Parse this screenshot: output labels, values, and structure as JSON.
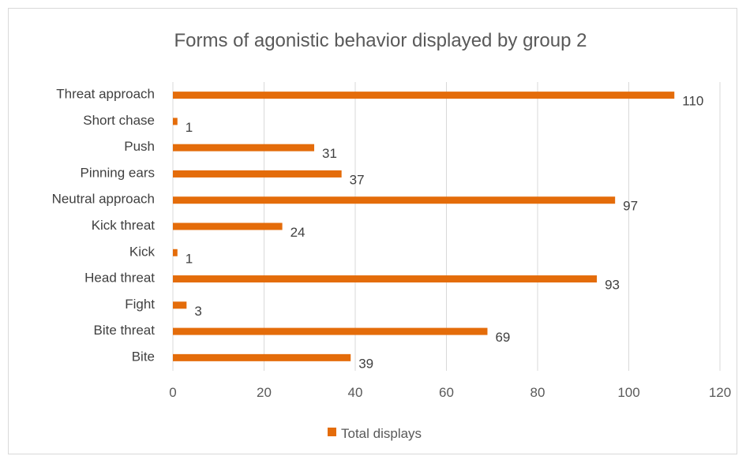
{
  "chart_data": {
    "type": "bar",
    "orientation": "horizontal",
    "title": "Forms of agonistic behavior displayed by group 2",
    "categories": [
      "Bite",
      "Bite threat",
      "Fight",
      "Head threat",
      "Kick",
      "Kick threat",
      "Neutral approach",
      "Pinning ears",
      "Push",
      "Short chase",
      "Threat approach"
    ],
    "series": [
      {
        "name": "Total displays",
        "values": [
          39,
          69,
          3,
          93,
          1,
          24,
          97,
          37,
          31,
          1,
          110
        ],
        "color": "#E46C0A"
      }
    ],
    "xlim": [
      0,
      120
    ],
    "xticks": [
      "0",
      "20",
      "40",
      "60",
      "80",
      "100",
      "120"
    ],
    "grid": true,
    "legend_position": "bottom"
  }
}
